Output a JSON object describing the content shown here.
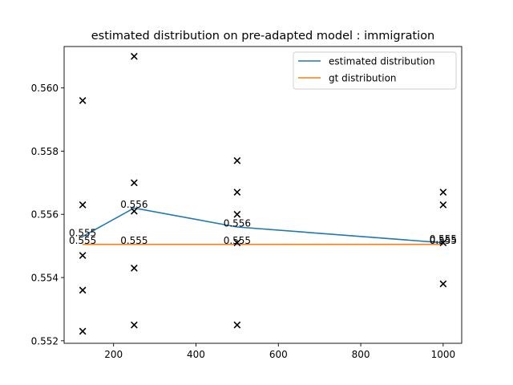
{
  "chart_data": {
    "type": "line",
    "title": "estimated distribution on pre-adapted model : immigration",
    "xlabel": "",
    "ylabel": "",
    "xlim": [
      80,
      1045
    ],
    "ylim": [
      0.55192,
      0.56131
    ],
    "x_ticks": [
      200,
      400,
      600,
      800,
      1000
    ],
    "x_tick_labels": [
      "200",
      "400",
      "600",
      "800",
      "1000"
    ],
    "y_ticks": [
      0.552,
      0.554,
      0.556,
      0.558,
      0.56
    ],
    "y_tick_labels": [
      "0.552",
      "0.554",
      "0.556",
      "0.558",
      "0.560"
    ],
    "grid": false,
    "legend_position": "top-right",
    "series": [
      {
        "name": "estimated distribution",
        "color": "#1f77b4",
        "x": [
          125,
          250,
          500,
          1000
        ],
        "y": [
          0.5553,
          0.5562,
          0.5556,
          0.5551
        ],
        "labels": [
          "0.555",
          "0.556",
          "0.556",
          "0.555"
        ]
      },
      {
        "name": "gt distribution",
        "color": "#ff7f0e",
        "x": [
          125,
          250,
          500,
          1000
        ],
        "y": [
          0.55505,
          0.55505,
          0.55505,
          0.55505
        ],
        "labels": [
          "0.555",
          "0.555",
          "0.555",
          "0.555"
        ]
      }
    ],
    "samples": {
      "marker": "x",
      "color": "#000000",
      "points": [
        [
          125,
          0.5596
        ],
        [
          125,
          0.5563
        ],
        [
          125,
          0.5547
        ],
        [
          125,
          0.5536
        ],
        [
          125,
          0.5523
        ],
        [
          250,
          0.561
        ],
        [
          250,
          0.557
        ],
        [
          250,
          0.5561
        ],
        [
          250,
          0.5543
        ],
        [
          250,
          0.5525
        ],
        [
          500,
          0.5577
        ],
        [
          500,
          0.5567
        ],
        [
          500,
          0.556
        ],
        [
          500,
          0.5551
        ],
        [
          500,
          0.5525
        ],
        [
          1000,
          0.5567
        ],
        [
          1000,
          0.5563
        ],
        [
          1000,
          0.5551
        ],
        [
          1000,
          0.5538
        ]
      ]
    }
  }
}
